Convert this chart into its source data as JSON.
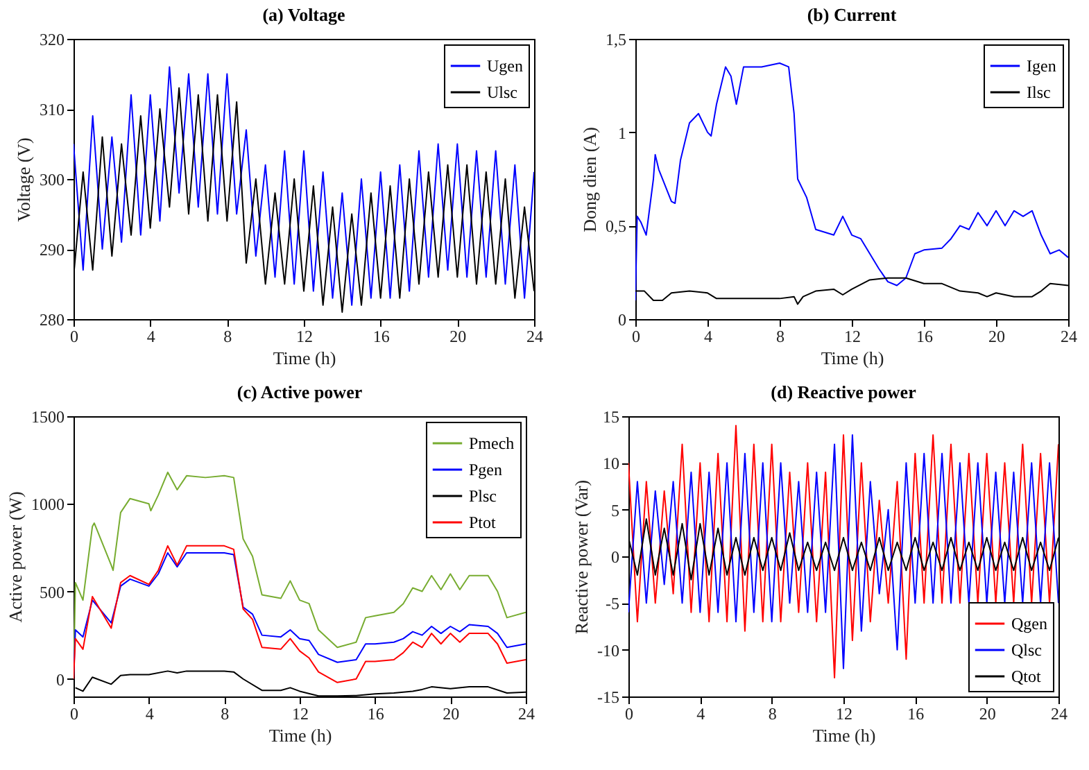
{
  "chart_data": [
    {
      "type": "line",
      "title": "(a) Voltage",
      "xlabel": "Time (h)",
      "ylabel": "Voltage (V)",
      "xlim": [
        0,
        24
      ],
      "xticks": [
        0,
        4,
        8,
        12,
        16,
        20,
        24
      ],
      "ylim": [
        280,
        320
      ],
      "yticks": [
        280,
        290,
        300,
        310,
        320
      ],
      "legend": "top right",
      "x": [
        0,
        0.5,
        1,
        1.5,
        2,
        2.5,
        3,
        3.5,
        4,
        4.5,
        5,
        5.5,
        6,
        6.5,
        7,
        7.5,
        8,
        8.5,
        9,
        9.5,
        10,
        10.5,
        11,
        11.5,
        12,
        12.5,
        13,
        13.5,
        14,
        14.5,
        15,
        15.5,
        16,
        16.5,
        17,
        17.5,
        18,
        18.5,
        19,
        19.5,
        20,
        20.5,
        21,
        21.5,
        22,
        22.5,
        23,
        23.5,
        24
      ],
      "series": [
        {
          "name": "Ugen",
          "color": "#0000ff",
          "values": [
            305,
            287,
            309,
            290,
            306,
            291,
            312,
            292,
            312,
            294,
            316,
            298,
            315,
            296,
            315,
            295,
            315,
            295,
            307,
            289,
            302,
            286,
            304,
            285,
            304,
            284,
            301,
            283,
            298,
            282,
            300,
            283,
            301,
            283,
            302,
            284,
            304,
            286,
            305,
            287,
            305,
            286,
            304,
            286,
            304,
            285,
            302,
            283,
            301
          ]
        },
        {
          "name": "Ulsc",
          "color": "#000000",
          "values": [
            286,
            301,
            287,
            306,
            289,
            305,
            292,
            309,
            293,
            310,
            296,
            313,
            295,
            312,
            294,
            312,
            294,
            311,
            288,
            300,
            285,
            298,
            285,
            300,
            284,
            299,
            282,
            296,
            281,
            295,
            282,
            298,
            283,
            299,
            283,
            300,
            285,
            301,
            286,
            302,
            286,
            302,
            285,
            301,
            285,
            300,
            283,
            296,
            284
          ]
        }
      ]
    },
    {
      "type": "line",
      "title": "(b) Current",
      "xlabel": "Time (h)",
      "ylabel": "Dong dien (A)",
      "xlim": [
        0,
        24
      ],
      "xticks": [
        0,
        4,
        8,
        12,
        16,
        20,
        24
      ],
      "ylim": [
        0,
        1.5
      ],
      "yticks": [
        0,
        {
          "value": 0.5,
          "label": "0,5"
        },
        1,
        {
          "value": 1.5,
          "label": "1,5"
        }
      ],
      "legend": "top right",
      "series": [
        {
          "name": "Igen",
          "color": "#0000ff",
          "x": [
            0,
            0.1,
            0.3,
            0.6,
            1,
            1.1,
            1.3,
            2,
            2.2,
            2.5,
            3,
            3.5,
            4,
            4.2,
            4.5,
            5,
            5.3,
            5.6,
            6,
            7,
            8,
            8.5,
            8.8,
            9,
            9.5,
            10,
            11,
            11.5,
            12,
            12.5,
            13,
            13.5,
            14,
            14.5,
            15,
            15.5,
            16,
            17,
            17.5,
            18,
            18.5,
            19,
            19.5,
            20,
            20.5,
            21,
            21.5,
            22,
            22.5,
            23,
            23.5,
            24
          ],
          "values": [
            0.1,
            0.55,
            0.52,
            0.45,
            0.75,
            0.88,
            0.8,
            0.63,
            0.62,
            0.85,
            1.05,
            1.1,
            1.0,
            0.98,
            1.15,
            1.35,
            1.3,
            1.15,
            1.35,
            1.35,
            1.37,
            1.35,
            1.1,
            0.75,
            0.65,
            0.48,
            0.45,
            0.55,
            0.45,
            0.43,
            0.35,
            0.27,
            0.2,
            0.18,
            0.22,
            0.35,
            0.37,
            0.38,
            0.43,
            0.5,
            0.48,
            0.57,
            0.5,
            0.58,
            0.5,
            0.58,
            0.55,
            0.58,
            0.45,
            0.35,
            0.37,
            0.33
          ]
        },
        {
          "name": "Ilsc",
          "color": "#000000",
          "x": [
            0,
            0.5,
            1,
            1.5,
            2,
            3,
            4,
            4.5,
            6,
            8,
            8.8,
            9,
            9.3,
            10,
            11,
            11.5,
            12,
            13,
            14,
            15,
            16,
            17,
            18,
            19,
            19.5,
            20,
            21,
            22,
            22.5,
            23,
            24
          ],
          "values": [
            0.15,
            0.15,
            0.1,
            0.1,
            0.14,
            0.15,
            0.14,
            0.11,
            0.11,
            0.11,
            0.12,
            0.08,
            0.12,
            0.15,
            0.16,
            0.13,
            0.16,
            0.21,
            0.22,
            0.22,
            0.19,
            0.19,
            0.15,
            0.14,
            0.12,
            0.14,
            0.12,
            0.12,
            0.15,
            0.19,
            0.18
          ]
        }
      ]
    },
    {
      "type": "line",
      "title": "(c) Active power",
      "xlabel": "Time (h)",
      "ylabel": "Active power (W)",
      "xlim": [
        0,
        24
      ],
      "xticks": [
        0,
        4,
        8,
        12,
        16,
        20,
        24
      ],
      "ylim": [
        -100,
        1500
      ],
      "yticks": [
        0,
        500,
        1000,
        1500
      ],
      "legend": "top right",
      "series": [
        {
          "name": "Pmech",
          "color": "#77ac30",
          "x": [
            0,
            0.1,
            0.5,
            1,
            1.1,
            2,
            2.1,
            2.5,
            3,
            4,
            4.1,
            4.5,
            5,
            5.5,
            6,
            7,
            8,
            8.5,
            9,
            9.5,
            10,
            11,
            11.5,
            12,
            12.5,
            13,
            14,
            15,
            15.5,
            16,
            17,
            17.5,
            18,
            18.5,
            19,
            19.5,
            20,
            20.5,
            21,
            22,
            22.5,
            23,
            24
          ],
          "values": [
            0,
            550,
            450,
            870,
            890,
            650,
            620,
            950,
            1030,
            1000,
            960,
            1050,
            1180,
            1080,
            1160,
            1150,
            1160,
            1150,
            800,
            700,
            480,
            460,
            560,
            450,
            430,
            280,
            180,
            210,
            350,
            360,
            380,
            430,
            520,
            500,
            590,
            510,
            600,
            510,
            590,
            590,
            500,
            350,
            380
          ]
        },
        {
          "name": "Pgen",
          "color": "#0000ff",
          "x": [
            0,
            0.1,
            0.5,
            1,
            2,
            2.5,
            3,
            4,
            4.5,
            5,
            5.5,
            6,
            7,
            8,
            8.5,
            9,
            9.5,
            10,
            11,
            11.5,
            12,
            12.5,
            13,
            14,
            15,
            15.5,
            16,
            17,
            17.5,
            18,
            18.5,
            19,
            19.5,
            20,
            20.5,
            21,
            22,
            22.5,
            23,
            24
          ],
          "values": [
            0,
            280,
            240,
            450,
            320,
            530,
            570,
            530,
            600,
            720,
            640,
            720,
            720,
            720,
            710,
            410,
            370,
            250,
            240,
            280,
            230,
            220,
            140,
            95,
            110,
            200,
            200,
            210,
            230,
            270,
            250,
            300,
            260,
            300,
            270,
            310,
            300,
            260,
            180,
            200
          ]
        },
        {
          "name": "Plsc",
          "color": "#000000",
          "x": [
            0.1,
            0.5,
            1,
            2,
            2.5,
            3,
            4,
            5,
            5.5,
            6,
            8,
            8.5,
            9,
            10,
            11,
            11.5,
            12,
            13,
            14,
            15,
            16,
            17,
            18,
            18.5,
            19,
            20,
            21,
            22,
            23,
            24
          ],
          "values": [
            -50,
            -70,
            10,
            -30,
            20,
            25,
            25,
            45,
            35,
            45,
            45,
            40,
            0,
            -65,
            -65,
            -50,
            -70,
            -97,
            -97,
            -95,
            -85,
            -80,
            -70,
            -60,
            -45,
            -55,
            -45,
            -45,
            -80,
            -75
          ]
        },
        {
          "name": "Ptot",
          "color": "#ff0000",
          "x": [
            0,
            0.1,
            0.5,
            1,
            2,
            2.5,
            3,
            4,
            4.5,
            5,
            5.5,
            6,
            7,
            8,
            8.5,
            9,
            9.5,
            10,
            11,
            11.5,
            12,
            12.5,
            13,
            14,
            15,
            15.5,
            16,
            17,
            17.5,
            18,
            18.5,
            19,
            19.5,
            20,
            20.5,
            21,
            22,
            22.5,
            23,
            24
          ],
          "values": [
            0,
            230,
            170,
            470,
            290,
            550,
            590,
            540,
            620,
            760,
            650,
            760,
            760,
            760,
            740,
            400,
            340,
            180,
            170,
            230,
            160,
            120,
            40,
            -20,
            0,
            100,
            100,
            110,
            150,
            210,
            180,
            260,
            200,
            260,
            210,
            260,
            260,
            200,
            90,
            110
          ]
        }
      ]
    },
    {
      "type": "line",
      "title": "(d) Reactive power",
      "xlabel": "Time (h)",
      "ylabel": "Reactive power (Var)",
      "xlim": [
        0,
        24
      ],
      "xticks": [
        0,
        4,
        8,
        12,
        16,
        20,
        24
      ],
      "ylim": [
        -15,
        15
      ],
      "yticks": [
        -15,
        -10,
        -5,
        0,
        5,
        10,
        15
      ],
      "legend": "bottom right",
      "x": [
        0,
        0.5,
        1,
        1.5,
        2,
        2.5,
        3,
        3.5,
        4,
        4.5,
        5,
        5.5,
        6,
        6.5,
        7,
        7.5,
        8,
        8.5,
        9,
        9.5,
        10,
        10.5,
        11,
        11.5,
        12,
        12.5,
        13,
        13.5,
        14,
        14.5,
        15,
        15.5,
        16,
        16.5,
        17,
        17.5,
        18,
        18.5,
        19,
        19.5,
        20,
        20.5,
        21,
        21.5,
        22,
        22.5,
        23,
        23.5,
        24
      ],
      "series": [
        {
          "name": "Qgen",
          "color": "#ff0000",
          "values": [
            10,
            -7,
            8,
            -5,
            7,
            -4,
            12,
            -6,
            10,
            -7,
            11,
            -7,
            14,
            -8,
            12,
            -7,
            12,
            -7,
            9,
            -6,
            10,
            -7,
            9,
            -13,
            13,
            -9,
            10,
            -7,
            6,
            -5,
            8,
            -11,
            11,
            -5,
            13,
            -5,
            12,
            -5,
            11,
            -5,
            11,
            -5,
            10,
            -5,
            12,
            -5,
            11,
            -5,
            12
          ]
        },
        {
          "name": "Qlsc",
          "color": "#0000ff",
          "values": [
            -6,
            8,
            -5,
            7,
            -3,
            8,
            -5,
            9,
            -6,
            9,
            -6,
            10,
            -7,
            11,
            -6,
            10,
            -7,
            10,
            -5,
            8,
            -6,
            9,
            -6,
            12,
            -12,
            13,
            -8,
            8,
            -4,
            5,
            -10,
            10,
            -5,
            11,
            -5,
            11,
            -5,
            10,
            -5,
            10,
            -5,
            9,
            -5,
            9,
            -5,
            10,
            -5,
            10,
            -5
          ]
        },
        {
          "name": "Qtot",
          "color": "#000000",
          "values": [
            2,
            -2,
            4,
            -2,
            3,
            -2,
            3.5,
            -2.5,
            3.5,
            -2,
            3,
            -2,
            2,
            -2,
            2,
            -1.5,
            2,
            -1.5,
            2.5,
            -1.5,
            1.5,
            -1.5,
            1.5,
            -1.5,
            2,
            -1.5,
            1.5,
            -1.5,
            2,
            -1.5,
            1.5,
            -1.5,
            2,
            -1.5,
            1.5,
            -1.5,
            2,
            -1.5,
            1.5,
            -1.5,
            2,
            -1.5,
            1.5,
            -1.5,
            2,
            -1.5,
            1.5,
            -1.5,
            2
          ]
        }
      ]
    }
  ]
}
